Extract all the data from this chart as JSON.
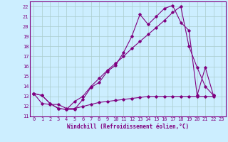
{
  "xlabel": "Windchill (Refroidissement éolien,°C)",
  "bg_color": "#cceeff",
  "line_color": "#800080",
  "grid_color": "#aacccc",
  "xlim": [
    -0.5,
    23.5
  ],
  "ylim": [
    11,
    22.5
  ],
  "xticks": [
    0,
    1,
    2,
    3,
    4,
    5,
    6,
    7,
    8,
    9,
    10,
    11,
    12,
    13,
    14,
    15,
    16,
    17,
    18,
    19,
    20,
    21,
    22,
    23
  ],
  "yticks": [
    11,
    12,
    13,
    14,
    15,
    16,
    17,
    18,
    19,
    20,
    21,
    22
  ],
  "line1_x": [
    0,
    1,
    2,
    3,
    4,
    5,
    6,
    7,
    8,
    9,
    10,
    11,
    12,
    13,
    14,
    15,
    16,
    17,
    18,
    19,
    20,
    21,
    22
  ],
  "line1_y": [
    13.3,
    13.1,
    12.3,
    11.8,
    11.7,
    11.7,
    12.7,
    13.9,
    14.4,
    15.5,
    16.1,
    17.4,
    19.0,
    21.2,
    20.2,
    21.0,
    21.8,
    22.1,
    20.4,
    19.6,
    13.1,
    15.9,
    13.1
  ],
  "line2_x": [
    0,
    1,
    2,
    3,
    4,
    5,
    6,
    7,
    8,
    9,
    10,
    11,
    12,
    13,
    14,
    15,
    16,
    17,
    18,
    19,
    20,
    21,
    22
  ],
  "line2_y": [
    13.3,
    13.1,
    12.3,
    11.8,
    11.7,
    12.5,
    13.0,
    14.0,
    14.8,
    15.6,
    16.3,
    17.0,
    17.8,
    18.5,
    19.2,
    19.9,
    20.6,
    21.4,
    22.0,
    18.0,
    15.9,
    14.0,
    13.1
  ],
  "line3_x": [
    0,
    1,
    2,
    3,
    4,
    5,
    6,
    7,
    8,
    9,
    10,
    11,
    12,
    13,
    14,
    15,
    16,
    17,
    18,
    19,
    20,
    21,
    22
  ],
  "line3_y": [
    13.3,
    12.3,
    12.2,
    12.2,
    11.8,
    11.8,
    12.0,
    12.2,
    12.4,
    12.5,
    12.6,
    12.7,
    12.8,
    12.9,
    13.0,
    13.0,
    13.0,
    13.0,
    13.0,
    13.0,
    13.0,
    13.0,
    13.0
  ],
  "tick_fontsize": 5,
  "xlabel_fontsize": 5.5
}
